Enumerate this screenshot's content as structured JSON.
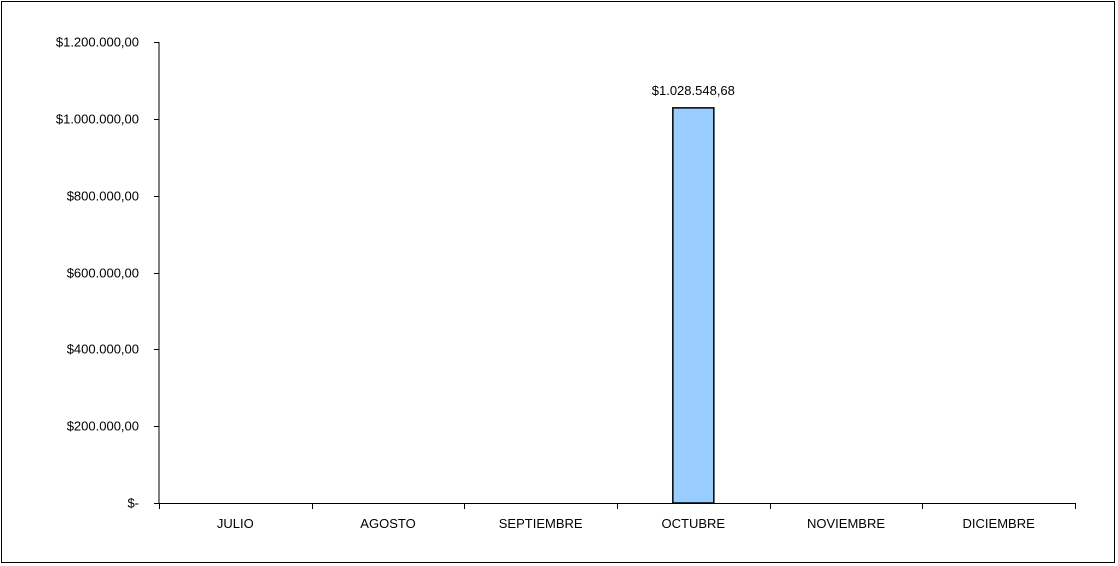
{
  "chart_data": {
    "type": "bar",
    "title": "",
    "xlabel": "",
    "ylabel": "",
    "categories": [
      "JULIO",
      "AGOSTO",
      "SEPTIEMBRE",
      "OCTUBRE",
      "NOVIEMBRE",
      "DICIEMBRE"
    ],
    "values": [
      0,
      0,
      0,
      1028548.68,
      0,
      0
    ],
    "data_labels": [
      "",
      "",
      "",
      "$1.028.548,68",
      "",
      ""
    ],
    "ylim": [
      0,
      1200000
    ],
    "yticks": [
      0,
      200000,
      400000,
      600000,
      800000,
      1000000,
      1200000
    ],
    "ytick_labels": [
      "$-",
      "$200.000,00",
      "$400.000,00",
      "$600.000,00",
      "$800.000,00",
      "$1.000.000,00",
      "$1.200.000,00"
    ],
    "grid": false,
    "legend": "none",
    "colors": {
      "bar_fill": "#99ccff",
      "bar_stroke": "#000000",
      "axis": "#000000"
    }
  }
}
